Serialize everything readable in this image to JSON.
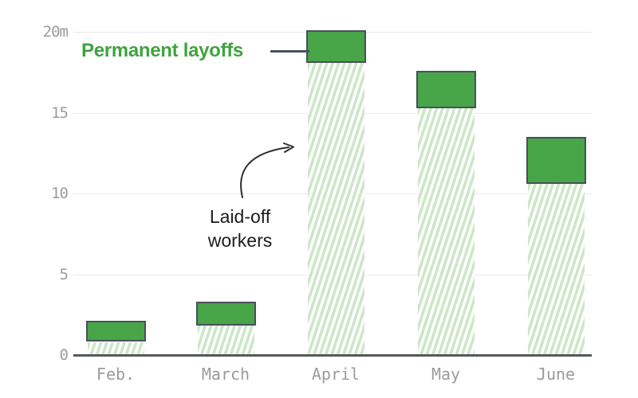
{
  "chart_data": {
    "type": "bar",
    "stacked": true,
    "title": "",
    "xlabel": "",
    "ylabel": "",
    "ylim": [
      0,
      20.5
    ],
    "grid": "horizontal",
    "unit": "millions of workers",
    "categories": [
      "Feb.",
      "March",
      "April",
      "May",
      "June"
    ],
    "series": [
      {
        "name": "Laid-off workers (temporary, hatched)",
        "style": "hatched",
        "values": [
          0.8,
          1.8,
          18.1,
          15.3,
          10.6
        ]
      },
      {
        "name": "Permanent layoffs (solid)",
        "style": "solid",
        "values": [
          1.3,
          1.5,
          2.0,
          2.3,
          2.9
        ]
      }
    ],
    "totals": [
      2.1,
      3.3,
      20.1,
      17.6,
      13.5
    ],
    "yticks": [
      {
        "value": 0,
        "label": "0"
      },
      {
        "value": 5,
        "label": "5"
      },
      {
        "value": 10,
        "label": "10"
      },
      {
        "value": 15,
        "label": "15"
      },
      {
        "value": 20,
        "label": "20m"
      }
    ],
    "annotations": {
      "permanent_label": "Permanent layoffs",
      "laidoff_line1": "Laid-off",
      "laidoff_line2": "workers"
    },
    "colors": {
      "solid_green": "#48a548",
      "hatch_green": "#cde7c8",
      "bar_border": "#49505c",
      "label_green": "#3fa33f",
      "text_dark": "#1c1c1c",
      "axis_text": "#9b9b9b",
      "gridline": "#eaeaea",
      "axis_line": "#58595a",
      "connector": "#4a5260",
      "arrow": "#2f2f2f"
    }
  }
}
